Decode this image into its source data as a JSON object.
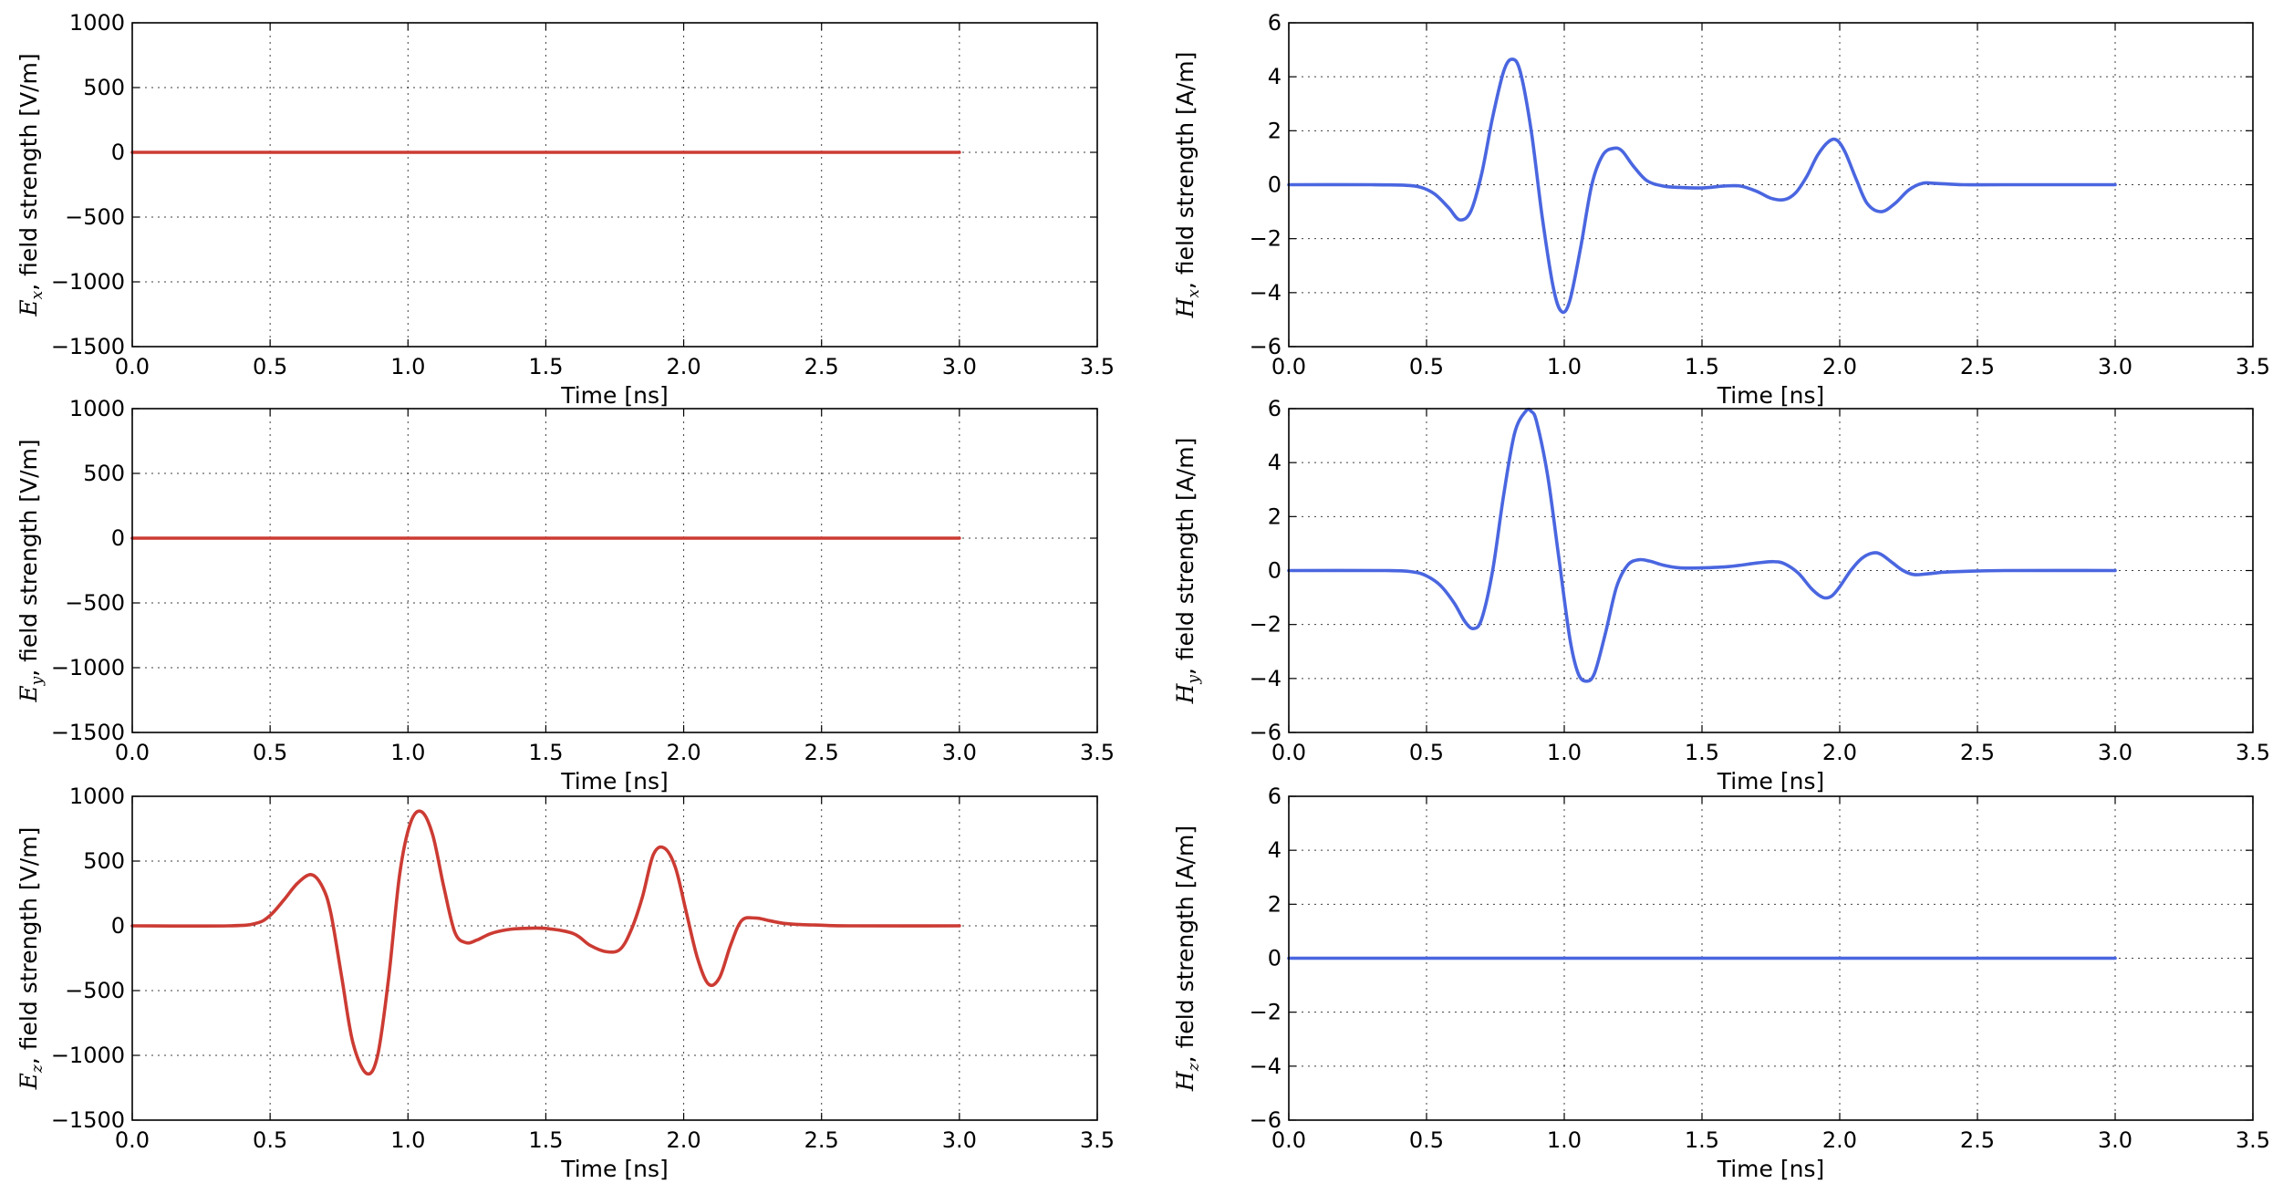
{
  "figure": {
    "background": "#ffffff",
    "e_color": "#cc3b33",
    "h_color": "#4a66e0"
  },
  "chart_data": [
    {
      "type": "line",
      "id": "ex",
      "ylabel": {
        "symbol": "E",
        "subscript": "x",
        "text": ", field strength [V/m]"
      },
      "xlabel": "Time [ns]",
      "xlim": [
        0,
        3.5
      ],
      "ylim": [
        -1500,
        1000
      ],
      "xticks": [
        "0.0",
        "0.5",
        "1.0",
        "1.5",
        "2.0",
        "2.5",
        "3.0",
        "3.5"
      ],
      "yticks": [
        "1000",
        "500",
        "0",
        "−500",
        "−1000",
        "−1500"
      ],
      "grid": true,
      "series": [
        {
          "color": "#cc3b33",
          "x": [
            0,
            3.0
          ],
          "y": [
            0,
            0
          ]
        }
      ]
    },
    {
      "type": "line",
      "id": "hx",
      "ylabel": {
        "symbol": "H",
        "subscript": "x",
        "text": ", field strength [A/m]"
      },
      "xlabel": "Time [ns]",
      "xlim": [
        0,
        3.5
      ],
      "ylim": [
        -6,
        6
      ],
      "xticks": [
        "0.0",
        "0.5",
        "1.0",
        "1.5",
        "2.0",
        "2.5",
        "3.0",
        "3.5"
      ],
      "yticks": [
        "6",
        "4",
        "2",
        "0",
        "−2",
        "−4",
        "−6"
      ],
      "grid": true,
      "series": [
        {
          "color": "#4a66e0",
          "x": [
            0,
            0.3,
            0.42,
            0.48,
            0.53,
            0.58,
            0.62,
            0.66,
            0.7,
            0.74,
            0.78,
            0.81,
            0.84,
            0.88,
            0.92,
            0.96,
            0.99,
            1.02,
            1.06,
            1.1,
            1.14,
            1.18,
            1.21,
            1.25,
            1.3,
            1.36,
            1.42,
            1.5,
            1.58,
            1.64,
            1.7,
            1.75,
            1.8,
            1.84,
            1.88,
            1.92,
            1.96,
            1.99,
            2.02,
            2.06,
            2.1,
            2.15,
            2.2,
            2.25,
            2.3,
            2.35,
            2.45,
            2.6,
            3.0
          ],
          "y": [
            0,
            0,
            -0.02,
            -0.1,
            -0.35,
            -0.85,
            -1.3,
            -1.0,
            0.4,
            2.5,
            4.2,
            4.65,
            4.2,
            2.0,
            -1.2,
            -3.8,
            -4.7,
            -4.3,
            -2.3,
            0.0,
            1.1,
            1.35,
            1.25,
            0.7,
            0.15,
            -0.05,
            -0.1,
            -0.12,
            -0.05,
            -0.05,
            -0.25,
            -0.5,
            -0.55,
            -0.3,
            0.3,
            1.1,
            1.6,
            1.65,
            1.2,
            0.2,
            -0.7,
            -1.0,
            -0.7,
            -0.2,
            0.05,
            0.05,
            0,
            0,
            0
          ]
        }
      ]
    },
    {
      "type": "line",
      "id": "ey",
      "ylabel": {
        "symbol": "E",
        "subscript": "y",
        "text": ", field strength [V/m]"
      },
      "xlabel": "Time [ns]",
      "xlim": [
        0,
        3.5
      ],
      "ylim": [
        -1500,
        1000
      ],
      "xticks": [
        "0.0",
        "0.5",
        "1.0",
        "1.5",
        "2.0",
        "2.5",
        "3.0",
        "3.5"
      ],
      "yticks": [
        "1000",
        "500",
        "0",
        "−500",
        "−1000",
        "−1500"
      ],
      "grid": true,
      "series": [
        {
          "color": "#cc3b33",
          "x": [
            0,
            3.0
          ],
          "y": [
            0,
            0
          ]
        }
      ]
    },
    {
      "type": "line",
      "id": "hy",
      "ylabel": {
        "symbol": "H",
        "subscript": "y",
        "text": ", field strength [A/m]"
      },
      "xlabel": "Time [ns]",
      "xlim": [
        0,
        3.5
      ],
      "ylim": [
        -6,
        6
      ],
      "xticks": [
        "0.0",
        "0.5",
        "1.0",
        "1.5",
        "2.0",
        "2.5",
        "3.0",
        "3.5"
      ],
      "yticks": [
        "6",
        "4",
        "2",
        "0",
        "−2",
        "−4",
        "−6"
      ],
      "grid": true,
      "series": [
        {
          "color": "#4a66e0",
          "x": [
            0,
            0.35,
            0.45,
            0.5,
            0.55,
            0.6,
            0.64,
            0.67,
            0.7,
            0.74,
            0.78,
            0.82,
            0.86,
            0.88,
            0.9,
            0.94,
            0.98,
            1.02,
            1.05,
            1.08,
            1.11,
            1.15,
            1.19,
            1.23,
            1.27,
            1.31,
            1.36,
            1.42,
            1.5,
            1.6,
            1.7,
            1.76,
            1.8,
            1.85,
            1.9,
            1.94,
            1.97,
            2.0,
            2.04,
            2.08,
            2.12,
            2.15,
            2.19,
            2.23,
            2.27,
            2.32,
            2.4,
            2.6,
            3.0
          ],
          "y": [
            0,
            0,
            -0.05,
            -0.2,
            -0.55,
            -1.2,
            -1.9,
            -2.15,
            -1.8,
            0.0,
            2.8,
            5.1,
            5.9,
            5.9,
            5.5,
            3.5,
            0.5,
            -2.5,
            -3.8,
            -4.1,
            -3.8,
            -2.3,
            -0.6,
            0.2,
            0.4,
            0.35,
            0.2,
            0.1,
            0.1,
            0.15,
            0.28,
            0.33,
            0.25,
            -0.1,
            -0.7,
            -1.0,
            -0.95,
            -0.6,
            0.0,
            0.45,
            0.65,
            0.6,
            0.3,
            0.0,
            -0.15,
            -0.12,
            -0.05,
            0,
            0
          ]
        }
      ]
    },
    {
      "type": "line",
      "id": "ez",
      "ylabel": {
        "symbol": "E",
        "subscript": "z",
        "text": ", field strength [V/m]"
      },
      "xlabel": "Time [ns]",
      "xlim": [
        0,
        3.5
      ],
      "ylim": [
        -1500,
        1000
      ],
      "xticks": [
        "0.0",
        "0.5",
        "1.0",
        "1.5",
        "2.0",
        "2.5",
        "3.0",
        "3.5"
      ],
      "yticks": [
        "1000",
        "500",
        "0",
        "−500",
        "−1000",
        "−1500"
      ],
      "grid": true,
      "series": [
        {
          "color": "#cc3b33",
          "x": [
            0,
            0.35,
            0.45,
            0.5,
            0.55,
            0.6,
            0.65,
            0.69,
            0.72,
            0.76,
            0.8,
            0.85,
            0.89,
            0.93,
            0.97,
            1.01,
            1.05,
            1.09,
            1.13,
            1.17,
            1.21,
            1.25,
            1.3,
            1.36,
            1.42,
            1.5,
            1.6,
            1.66,
            1.72,
            1.77,
            1.81,
            1.85,
            1.89,
            1.93,
            1.97,
            2.01,
            2.05,
            2.09,
            2.13,
            2.17,
            2.21,
            2.26,
            2.31,
            2.36,
            2.42,
            2.5,
            2.6,
            3.0
          ],
          "y": [
            0,
            0,
            20,
            80,
            200,
            330,
            395,
            300,
            100,
            -400,
            -900,
            -1140,
            -1000,
            -400,
            400,
            800,
            880,
            700,
            300,
            -50,
            -130,
            -110,
            -60,
            -30,
            -20,
            -20,
            -60,
            -150,
            -200,
            -180,
            -30,
            220,
            550,
            600,
            450,
            100,
            -250,
            -450,
            -400,
            -150,
            40,
            60,
            40,
            20,
            10,
            5,
            0,
            0
          ]
        }
      ]
    },
    {
      "type": "line",
      "id": "hz",
      "ylabel": {
        "symbol": "H",
        "subscript": "z",
        "text": ", field strength [A/m]"
      },
      "xlabel": "Time [ns]",
      "xlim": [
        0,
        3.5
      ],
      "ylim": [
        -6,
        6
      ],
      "xticks": [
        "0.0",
        "0.5",
        "1.0",
        "1.5",
        "2.0",
        "2.5",
        "3.0",
        "3.5"
      ],
      "yticks": [
        "6",
        "4",
        "2",
        "0",
        "−2",
        "−4",
        "−6"
      ],
      "grid": true,
      "series": [
        {
          "color": "#4a66e0",
          "x": [
            0,
            3.0
          ],
          "y": [
            0,
            0
          ]
        }
      ]
    }
  ]
}
